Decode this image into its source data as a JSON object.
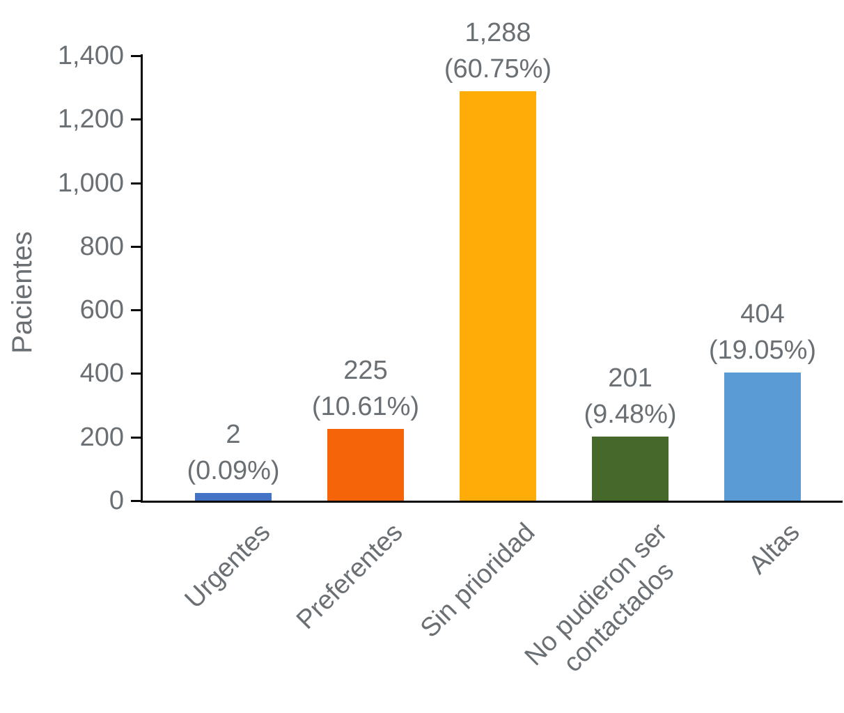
{
  "chart_data": {
    "type": "bar",
    "title": "",
    "xlabel": "",
    "ylabel": "Pacientes",
    "ylim": [
      0,
      1400
    ],
    "grid": false,
    "legend": false,
    "x_label_rotation": -45,
    "yticks": [
      0,
      200,
      400,
      600,
      800,
      1000,
      1200,
      1400
    ],
    "ytick_labels": [
      "0",
      "200",
      "400",
      "600",
      "800",
      "1,000",
      "1,200",
      "1,400"
    ],
    "categories": [
      "Urgentes",
      "Preferentes",
      "Sin prioridad",
      "No pudieron ser\ncontactados",
      "Altas"
    ],
    "values": [
      2,
      225,
      1288,
      201,
      404
    ],
    "bar_labels": [
      {
        "value": "2",
        "pct": "(0.09%)"
      },
      {
        "value": "225",
        "pct": "(10.61%)"
      },
      {
        "value": "1,288",
        "pct": "(60.75%)"
      },
      {
        "value": "201",
        "pct": "(9.48%)"
      },
      {
        "value": "404",
        "pct": "(19.05%)"
      }
    ],
    "colors": [
      "#4472C4",
      "#F56408",
      "#FFAC08",
      "#46682B",
      "#5B9BD5"
    ],
    "text_color": "#6A6F74",
    "axis_color": "#0A0A0A"
  }
}
